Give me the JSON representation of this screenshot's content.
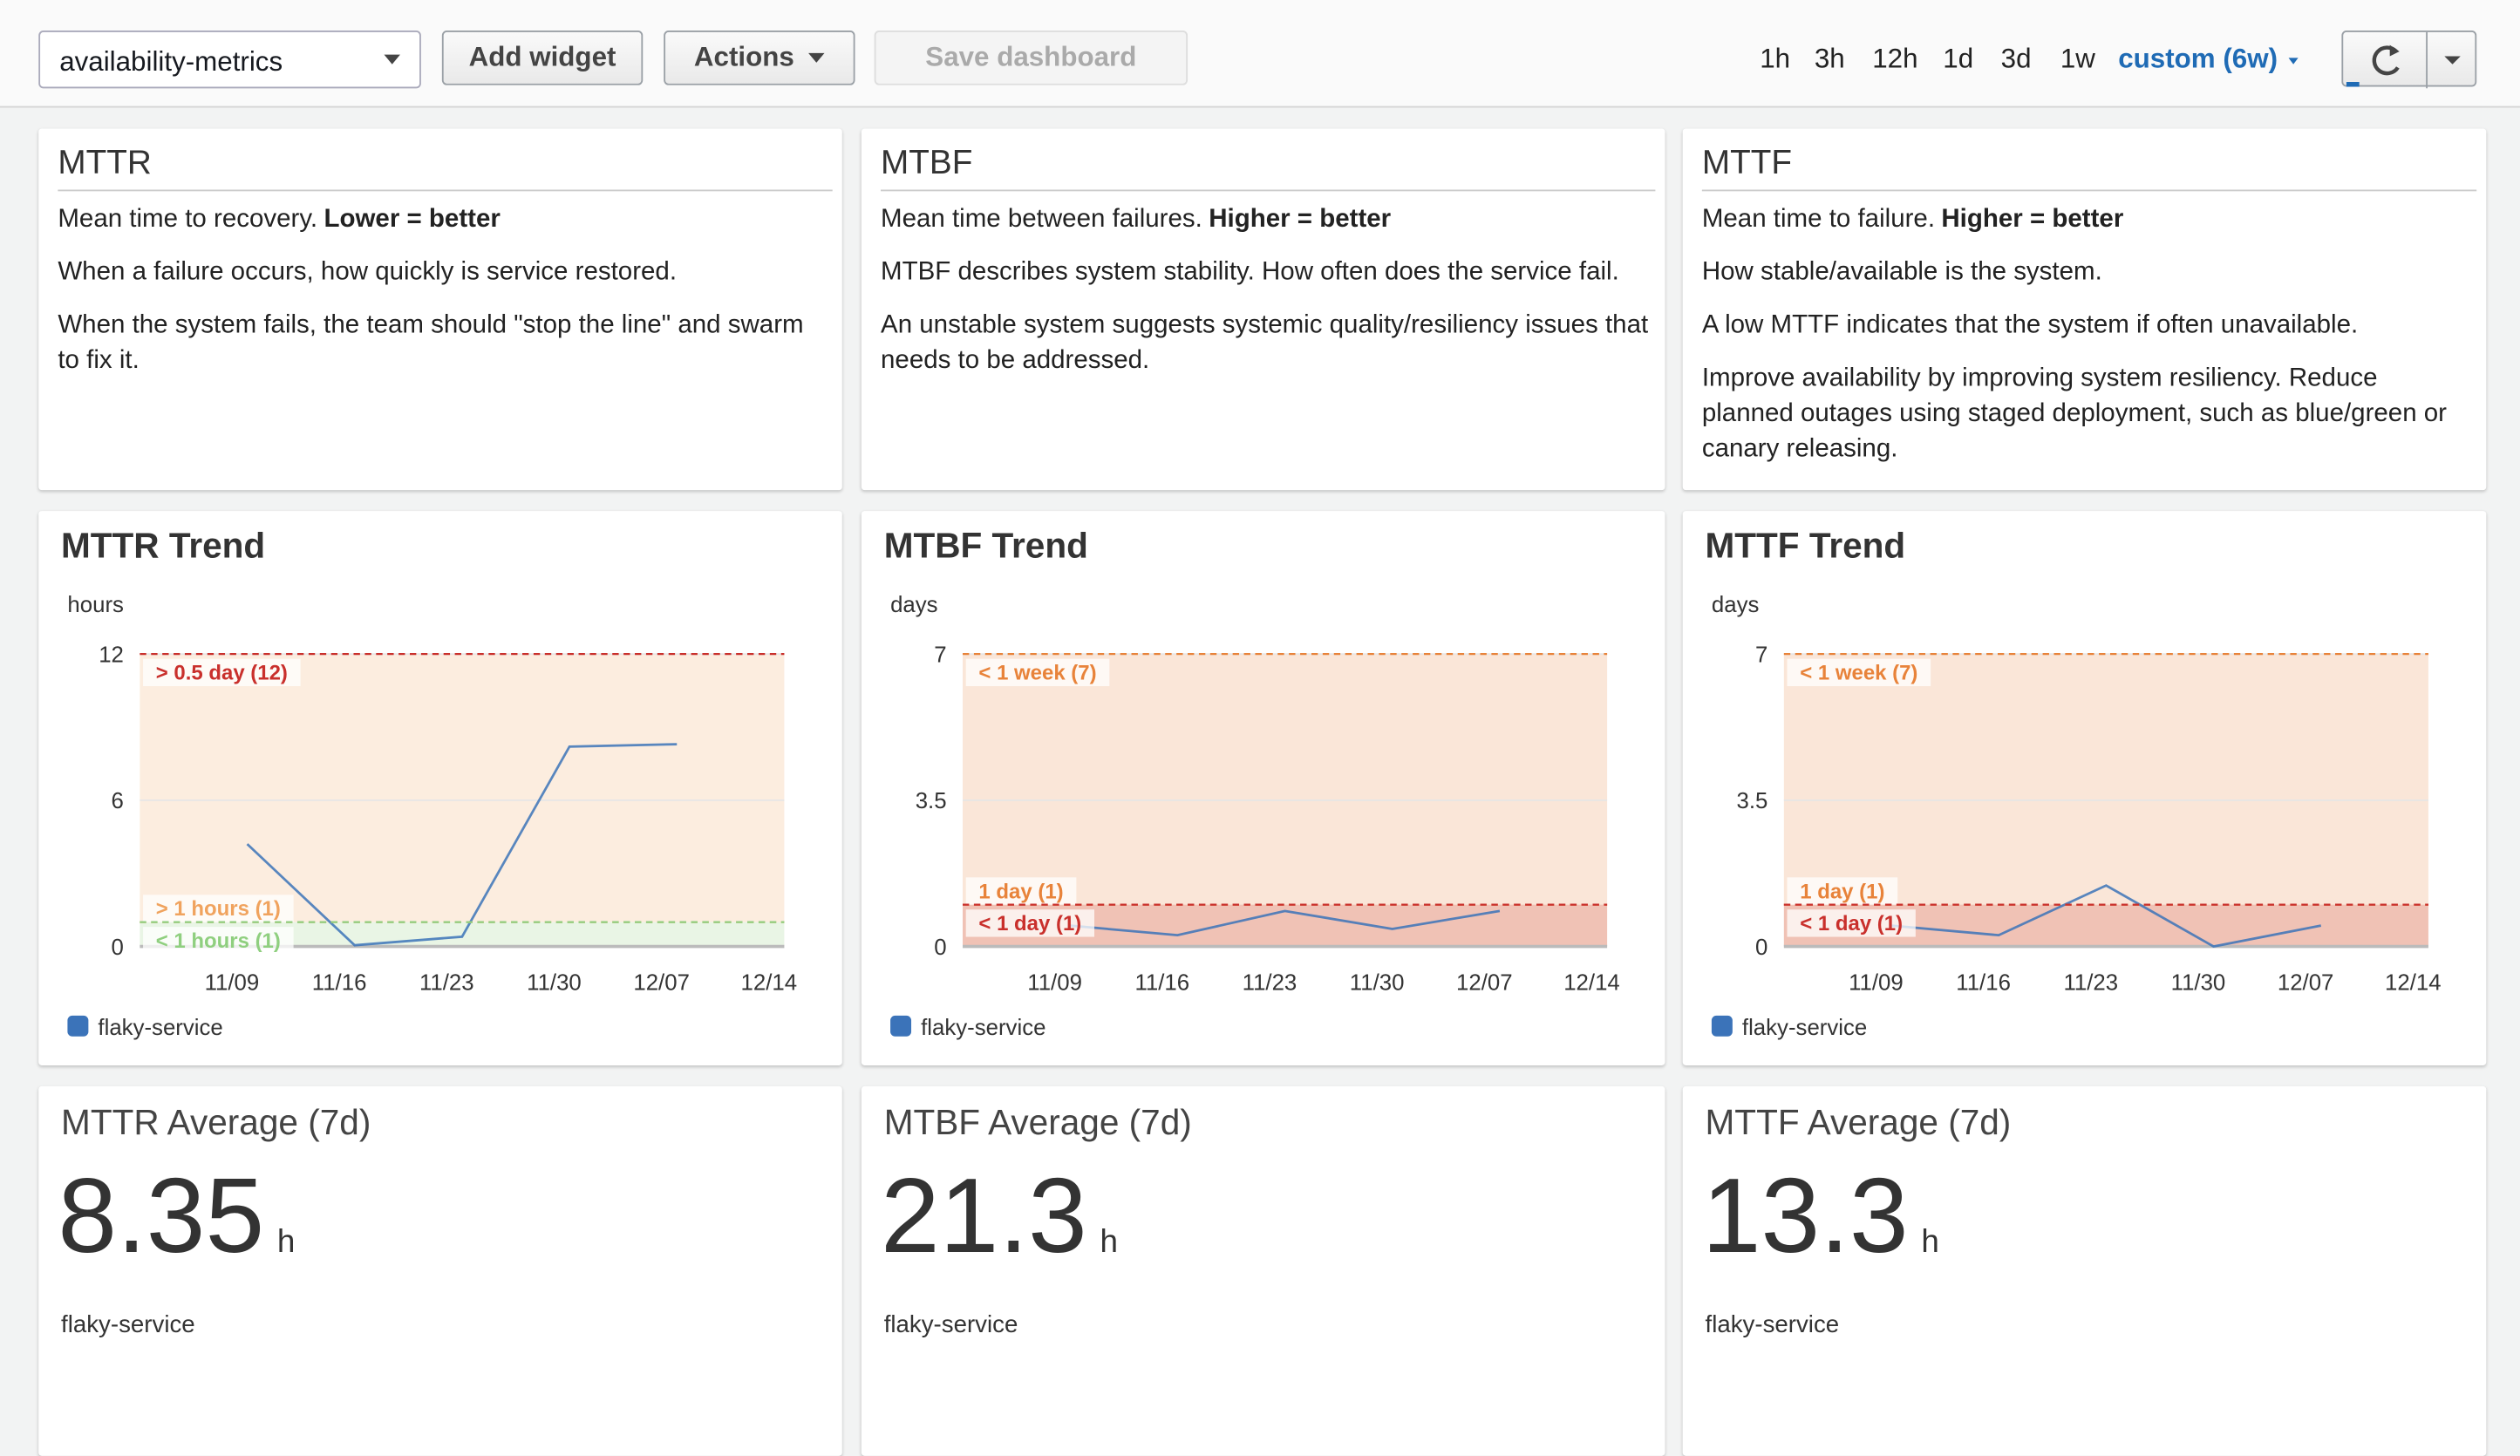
{
  "toolbar": {
    "dashboard": "availability-metrics",
    "add_widget": "Add widget",
    "actions": "Actions",
    "save": "Save dashboard",
    "time_ranges": [
      "1h",
      "3h",
      "12h",
      "1d",
      "3d",
      "1w"
    ],
    "custom_range": "custom (6w)"
  },
  "text_widgets": [
    {
      "title": "MTTR",
      "paragraphs": [
        {
          "text": "Mean time to recovery.",
          "bold": "Lower = better"
        },
        {
          "text": "When a failure occurs, how quickly is service restored."
        },
        {
          "text": "When the system fails, the team should \"stop the line\" and swarm to fix it."
        }
      ]
    },
    {
      "title": "MTBF",
      "paragraphs": [
        {
          "text": "Mean time between failures.",
          "bold": "Higher = better"
        },
        {
          "text": "MTBF describes system stability. How often does the service fail."
        },
        {
          "text": "An unstable system suggests systemic quality/resiliency issues that needs to be addressed."
        }
      ]
    },
    {
      "title": "MTTF",
      "paragraphs": [
        {
          "text": "Mean time to failure.",
          "bold": "Higher = better"
        },
        {
          "text": "How stable/available is the system."
        },
        {
          "text": "A low MTTF indicates that the system if often unavailable."
        },
        {
          "text": "Improve availability by improving system resiliency. Reduce planned outages using staged deployment, such as blue/green or canary releasing."
        }
      ]
    }
  ],
  "chart_data": [
    {
      "type": "line",
      "title": "MTTR Trend",
      "y_label": "hours",
      "x": [
        "11/10",
        "11/17",
        "11/24",
        "12/01",
        "12/08"
      ],
      "xlim": [
        "11/03",
        "12/15"
      ],
      "xticks": [
        "11/09",
        "11/16",
        "11/23",
        "11/30",
        "12/07",
        "12/14"
      ],
      "ylim": [
        0,
        12
      ],
      "yticks": [
        0,
        6,
        12
      ],
      "grid": true,
      "series": [
        {
          "name": "flaky-service",
          "color": "#3b73b9",
          "values": [
            4.2,
            0.05,
            0.4,
            8.2,
            8.3
          ]
        }
      ],
      "annotations": [
        {
          "label": "> 0.5 day (12)",
          "value": 12,
          "color": "#c9302c",
          "fill": "none"
        },
        {
          "label": "> 1 hours (1)",
          "value": 1,
          "color": "#f0a35e",
          "fill": "above"
        },
        {
          "label": "< 1 hours (1)",
          "value": 1,
          "color": "#8fcf7f",
          "fill": "below"
        }
      ]
    },
    {
      "type": "line",
      "title": "MTBF Trend",
      "y_label": "days",
      "x": [
        "11/10",
        "11/17",
        "11/24",
        "12/01",
        "12/08"
      ],
      "xlim": [
        "11/03",
        "12/15"
      ],
      "xticks": [
        "11/09",
        "11/16",
        "11/23",
        "11/30",
        "12/07",
        "12/14"
      ],
      "ylim": [
        0,
        7
      ],
      "yticks": [
        0,
        3.5,
        7
      ],
      "grid": true,
      "series": [
        {
          "name": "flaky-service",
          "color": "#3b73b9",
          "values": [
            0.5,
            0.27,
            0.85,
            0.42,
            0.85
          ]
        }
      ],
      "annotations": [
        {
          "label": "< 1 week (7)",
          "value": 7,
          "color": "#e8833a",
          "fill": "below"
        },
        {
          "label": "1 day (1)",
          "value": 1,
          "color": "#e8833a",
          "fill": "none"
        },
        {
          "label": "< 1 day (1)",
          "value": 1,
          "color": "#c9302c",
          "fill": "below"
        }
      ]
    },
    {
      "type": "line",
      "title": "MTTF Trend",
      "y_label": "days",
      "x": [
        "11/10",
        "11/17",
        "11/24",
        "12/01",
        "12/08"
      ],
      "xlim": [
        "11/03",
        "12/15"
      ],
      "xticks": [
        "11/09",
        "11/16",
        "11/23",
        "11/30",
        "12/07",
        "12/14"
      ],
      "ylim": [
        0,
        7
      ],
      "yticks": [
        0,
        3.5,
        7
      ],
      "grid": true,
      "series": [
        {
          "name": "flaky-service",
          "color": "#3b73b9",
          "values": [
            0.5,
            0.27,
            1.46,
            0.0,
            0.5
          ]
        }
      ],
      "annotations": [
        {
          "label": "< 1 week (7)",
          "value": 7,
          "color": "#e8833a",
          "fill": "below"
        },
        {
          "label": "1 day (1)",
          "value": 1,
          "color": "#e8833a",
          "fill": "none"
        },
        {
          "label": "< 1 day (1)",
          "value": 1,
          "color": "#c9302c",
          "fill": "below"
        }
      ]
    }
  ],
  "number_widgets": [
    {
      "title": "MTTR Average (7d)",
      "value": 8.35,
      "unit": "h",
      "label": "flaky-service"
    },
    {
      "title": "MTBF Average (7d)",
      "value": 21.3,
      "unit": "h",
      "label": "flaky-service"
    },
    {
      "title": "MTTF Average (7d)",
      "value": 13.3,
      "unit": "h",
      "label": "flaky-service"
    }
  ]
}
